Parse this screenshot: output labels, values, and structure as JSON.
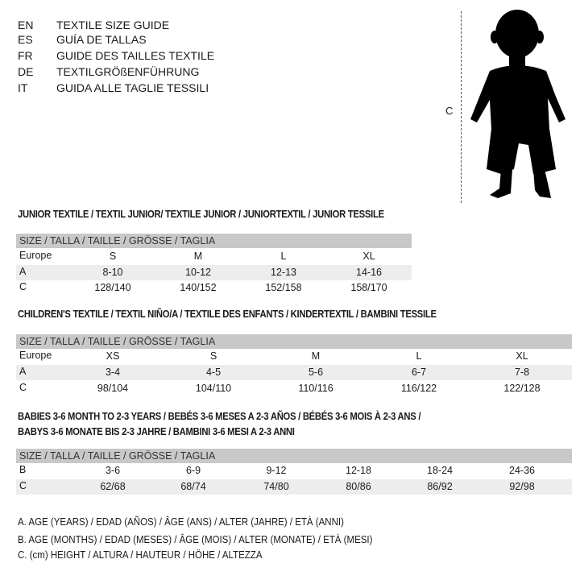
{
  "languages": [
    {
      "code": "EN",
      "title": "TEXTILE SIZE GUIDE"
    },
    {
      "code": "ES",
      "title": "GUÍA DE TALLAS"
    },
    {
      "code": "FR",
      "title": "GUIDE DES TAILLES TEXTILE"
    },
    {
      "code": "DE",
      "title": "TEXTILGRÖßENFÜHRUNG"
    },
    {
      "code": "IT",
      "title": "GUIDA ALLE TAGLIE TESSILI"
    }
  ],
  "figure": {
    "height_label": "C",
    "icon": "child-silhouette"
  },
  "size_header": "SIZE / TALLA / TAILLE / GRÖSSE / TAGLIA",
  "junior": {
    "title": "JUNIOR TEXTILE / TEXTIL JUNIOR/ TEXTILE JUNIOR / JUNIORTEXTIL / JUNIOR TESSILE",
    "rows": [
      {
        "label": "Europe",
        "values": [
          "S",
          "M",
          "L",
          "XL"
        ]
      },
      {
        "label": "A",
        "values": [
          "8-10",
          "10-12",
          "12-13",
          "14-16"
        ]
      },
      {
        "label": "C",
        "values": [
          "128/140",
          "140/152",
          "152/158",
          "158/170"
        ]
      }
    ]
  },
  "children": {
    "title": "CHILDREN'S TEXTILE / TEXTIL NIÑO/A / TEXTILE DES ENFANTS / KINDERTEXTIL / BAMBINI TESSILE",
    "rows": [
      {
        "label": "Europe",
        "values": [
          "XS",
          "S",
          "M",
          "L",
          "XL"
        ]
      },
      {
        "label": "A",
        "values": [
          "3-4",
          "4-5",
          "5-6",
          "6-7",
          "7-8"
        ]
      },
      {
        "label": "C",
        "values": [
          "98/104",
          "104/110",
          "110/116",
          "116/122",
          "122/128"
        ]
      }
    ]
  },
  "babies": {
    "title_line1": "BABIES 3-6 MONTH TO 2-3 YEARS / BEBÉS 3-6 MESES A 2-3 AÑOS / BÉBÉS 3-6 MOIS À 2-3 ANS /",
    "title_line2": "BABYS 3-6 MONATE BIS 2-3 JAHRE / BAMBINI 3-6 MESI A 2-3 ANNI",
    "rows": [
      {
        "label": "B",
        "values": [
          "3-6",
          "6-9",
          "9-12",
          "12-18",
          "18-24",
          "24-36"
        ]
      },
      {
        "label": "C",
        "values": [
          "62/68",
          "68/74",
          "74/80",
          "80/86",
          "86/92",
          "92/98"
        ]
      }
    ]
  },
  "legend": [
    "A. AGE (YEARS) / EDAD (AÑOS) / ÂGE (ANS) / ALTER (JAHRE) / ETÀ (ANNI)",
    "B. AGE (MONTHS) / EDAD (MESES) / ÂGE (MOIS) / ALTER (MONATE) / ETÀ (MESI)",
    "C. (cm) HEIGHT / ALTURA / HAUTEUR / HÖHE / ALTEZZA"
  ]
}
